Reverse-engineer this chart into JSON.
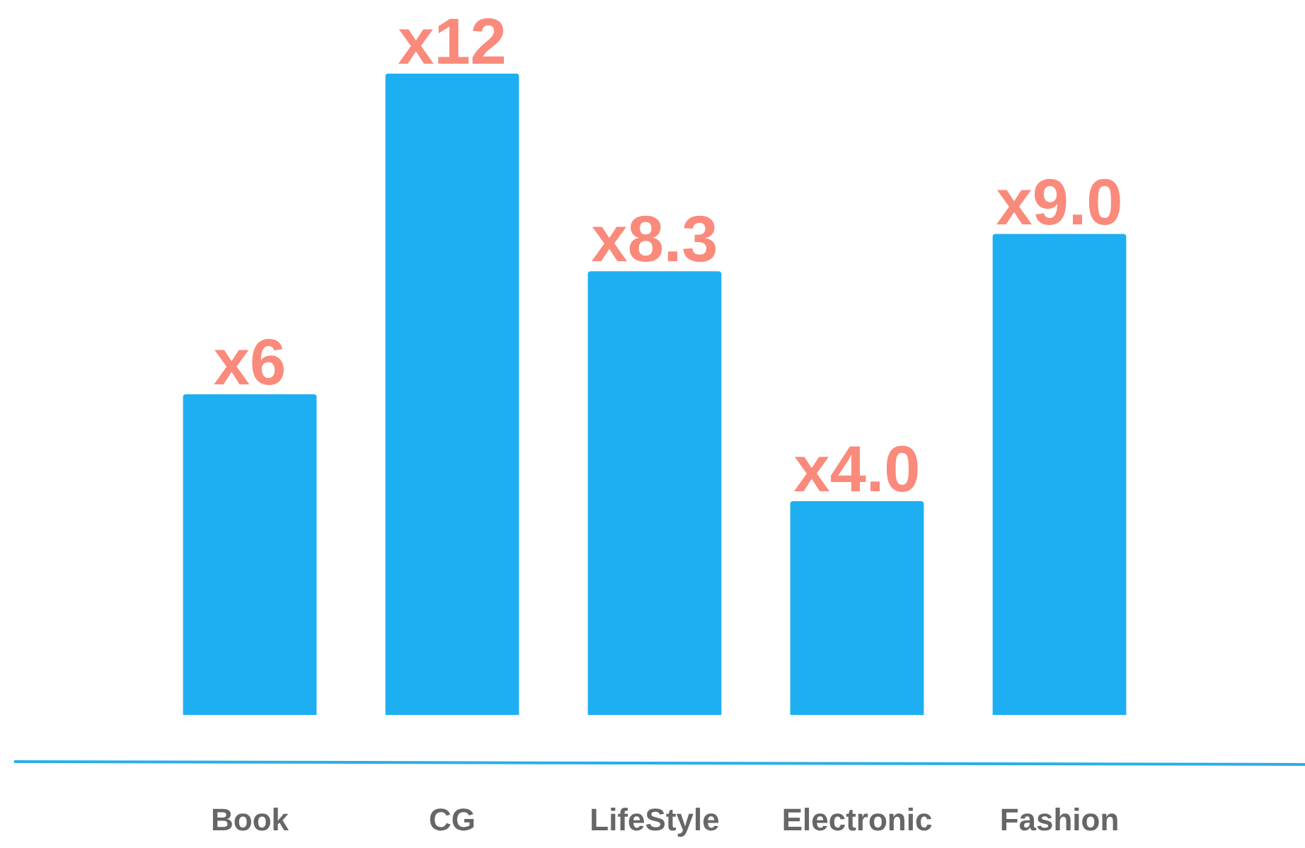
{
  "chart_data": {
    "type": "bar",
    "categories": [
      "Book",
      "CG",
      "LifeStyle",
      "Electronic",
      "Fashion"
    ],
    "values": [
      6,
      12,
      8.3,
      4.0,
      9.0
    ],
    "value_labels": [
      "x6",
      "x12",
      "x8.3",
      "x4.0",
      "x9.0"
    ],
    "color": "#1eaff2",
    "grid": false,
    "legend": false,
    "tick_labels": "x"
  }
}
